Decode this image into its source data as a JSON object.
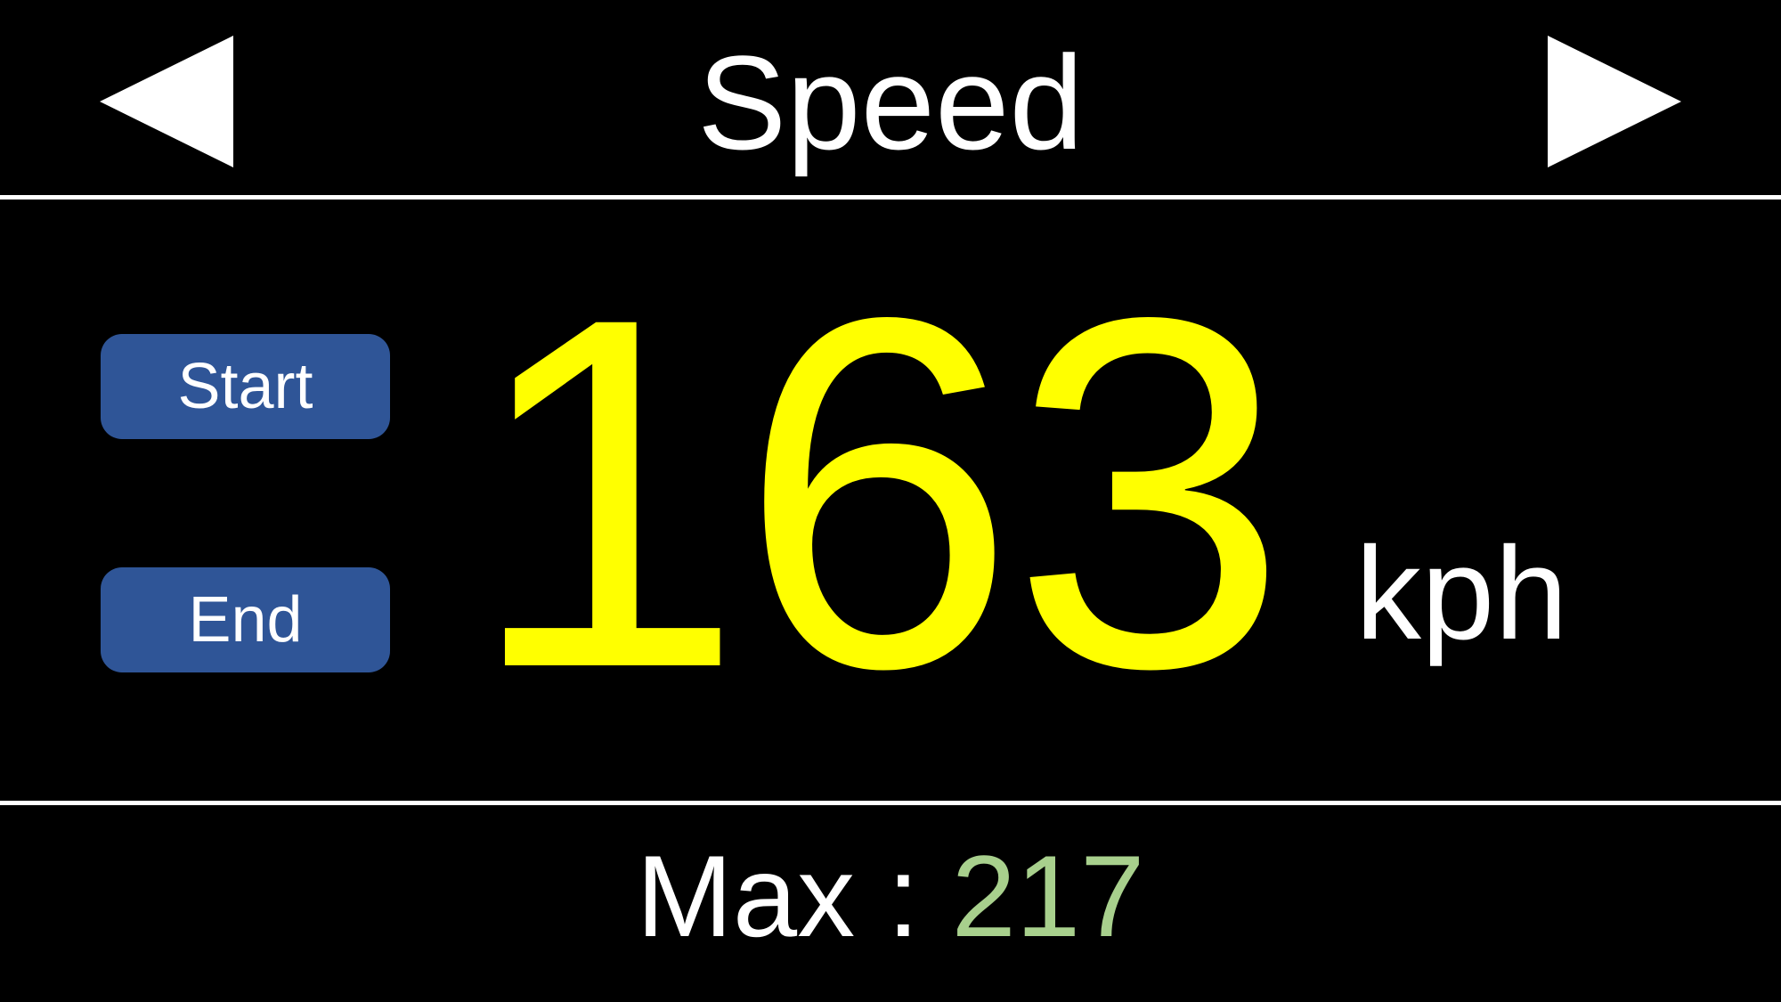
{
  "header": {
    "title": "Speed",
    "prev_icon": "triangle-left-icon",
    "next_icon": "triangle-right-icon"
  },
  "controls": {
    "start_label": "Start",
    "end_label": "End"
  },
  "speed": {
    "value": "163",
    "unit": "kph"
  },
  "footer": {
    "max_label": "Max",
    "separator": ":",
    "max_value": "217"
  },
  "colors": {
    "background": "#000000",
    "divider": "#ffffff",
    "speed_value": "#ffff00",
    "max_value": "#a8d08d",
    "button_bg": "#2f5597",
    "button_text": "#ffffff"
  }
}
